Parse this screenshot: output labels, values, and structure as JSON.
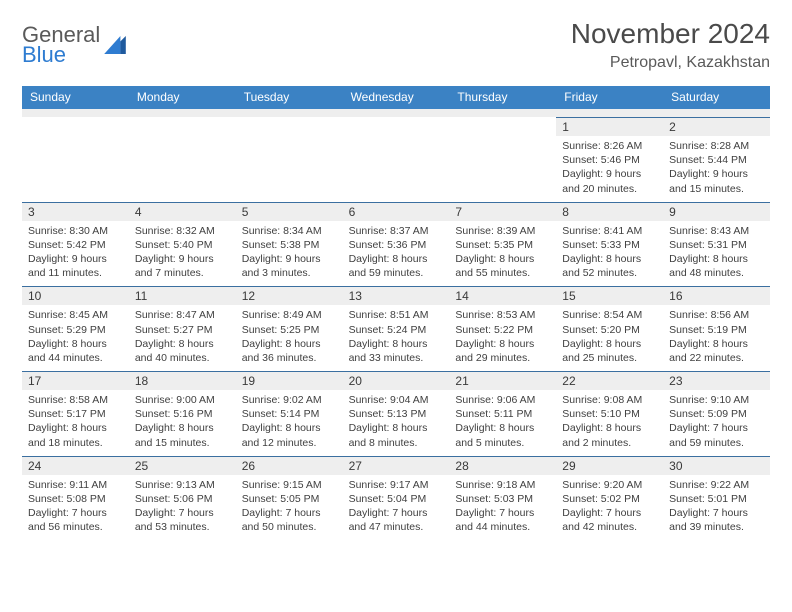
{
  "logo": {
    "text1": "General",
    "text2": "Blue"
  },
  "header": {
    "title": "November 2024",
    "location": "Petropavl, Kazakhstan"
  },
  "colors": {
    "header_bg": "#3b82c4",
    "header_text": "#ffffff",
    "daynum_bg": "#eeeeee",
    "cell_border_top": "#3b6fa0",
    "text": "#404040",
    "logo_blue": "#2e7cd1",
    "logo_gray": "#5a5a5a"
  },
  "daynames": [
    "Sunday",
    "Monday",
    "Tuesday",
    "Wednesday",
    "Thursday",
    "Friday",
    "Saturday"
  ],
  "weeks": [
    [
      null,
      null,
      null,
      null,
      null,
      {
        "n": "1",
        "sr": "Sunrise: 8:26 AM",
        "ss": "Sunset: 5:46 PM",
        "d1": "Daylight: 9 hours",
        "d2": "and 20 minutes."
      },
      {
        "n": "2",
        "sr": "Sunrise: 8:28 AM",
        "ss": "Sunset: 5:44 PM",
        "d1": "Daylight: 9 hours",
        "d2": "and 15 minutes."
      }
    ],
    [
      {
        "n": "3",
        "sr": "Sunrise: 8:30 AM",
        "ss": "Sunset: 5:42 PM",
        "d1": "Daylight: 9 hours",
        "d2": "and 11 minutes."
      },
      {
        "n": "4",
        "sr": "Sunrise: 8:32 AM",
        "ss": "Sunset: 5:40 PM",
        "d1": "Daylight: 9 hours",
        "d2": "and 7 minutes."
      },
      {
        "n": "5",
        "sr": "Sunrise: 8:34 AM",
        "ss": "Sunset: 5:38 PM",
        "d1": "Daylight: 9 hours",
        "d2": "and 3 minutes."
      },
      {
        "n": "6",
        "sr": "Sunrise: 8:37 AM",
        "ss": "Sunset: 5:36 PM",
        "d1": "Daylight: 8 hours",
        "d2": "and 59 minutes."
      },
      {
        "n": "7",
        "sr": "Sunrise: 8:39 AM",
        "ss": "Sunset: 5:35 PM",
        "d1": "Daylight: 8 hours",
        "d2": "and 55 minutes."
      },
      {
        "n": "8",
        "sr": "Sunrise: 8:41 AM",
        "ss": "Sunset: 5:33 PM",
        "d1": "Daylight: 8 hours",
        "d2": "and 52 minutes."
      },
      {
        "n": "9",
        "sr": "Sunrise: 8:43 AM",
        "ss": "Sunset: 5:31 PM",
        "d1": "Daylight: 8 hours",
        "d2": "and 48 minutes."
      }
    ],
    [
      {
        "n": "10",
        "sr": "Sunrise: 8:45 AM",
        "ss": "Sunset: 5:29 PM",
        "d1": "Daylight: 8 hours",
        "d2": "and 44 minutes."
      },
      {
        "n": "11",
        "sr": "Sunrise: 8:47 AM",
        "ss": "Sunset: 5:27 PM",
        "d1": "Daylight: 8 hours",
        "d2": "and 40 minutes."
      },
      {
        "n": "12",
        "sr": "Sunrise: 8:49 AM",
        "ss": "Sunset: 5:25 PM",
        "d1": "Daylight: 8 hours",
        "d2": "and 36 minutes."
      },
      {
        "n": "13",
        "sr": "Sunrise: 8:51 AM",
        "ss": "Sunset: 5:24 PM",
        "d1": "Daylight: 8 hours",
        "d2": "and 33 minutes."
      },
      {
        "n": "14",
        "sr": "Sunrise: 8:53 AM",
        "ss": "Sunset: 5:22 PM",
        "d1": "Daylight: 8 hours",
        "d2": "and 29 minutes."
      },
      {
        "n": "15",
        "sr": "Sunrise: 8:54 AM",
        "ss": "Sunset: 5:20 PM",
        "d1": "Daylight: 8 hours",
        "d2": "and 25 minutes."
      },
      {
        "n": "16",
        "sr": "Sunrise: 8:56 AM",
        "ss": "Sunset: 5:19 PM",
        "d1": "Daylight: 8 hours",
        "d2": "and 22 minutes."
      }
    ],
    [
      {
        "n": "17",
        "sr": "Sunrise: 8:58 AM",
        "ss": "Sunset: 5:17 PM",
        "d1": "Daylight: 8 hours",
        "d2": "and 18 minutes."
      },
      {
        "n": "18",
        "sr": "Sunrise: 9:00 AM",
        "ss": "Sunset: 5:16 PM",
        "d1": "Daylight: 8 hours",
        "d2": "and 15 minutes."
      },
      {
        "n": "19",
        "sr": "Sunrise: 9:02 AM",
        "ss": "Sunset: 5:14 PM",
        "d1": "Daylight: 8 hours",
        "d2": "and 12 minutes."
      },
      {
        "n": "20",
        "sr": "Sunrise: 9:04 AM",
        "ss": "Sunset: 5:13 PM",
        "d1": "Daylight: 8 hours",
        "d2": "and 8 minutes."
      },
      {
        "n": "21",
        "sr": "Sunrise: 9:06 AM",
        "ss": "Sunset: 5:11 PM",
        "d1": "Daylight: 8 hours",
        "d2": "and 5 minutes."
      },
      {
        "n": "22",
        "sr": "Sunrise: 9:08 AM",
        "ss": "Sunset: 5:10 PM",
        "d1": "Daylight: 8 hours",
        "d2": "and 2 minutes."
      },
      {
        "n": "23",
        "sr": "Sunrise: 9:10 AM",
        "ss": "Sunset: 5:09 PM",
        "d1": "Daylight: 7 hours",
        "d2": "and 59 minutes."
      }
    ],
    [
      {
        "n": "24",
        "sr": "Sunrise: 9:11 AM",
        "ss": "Sunset: 5:08 PM",
        "d1": "Daylight: 7 hours",
        "d2": "and 56 minutes."
      },
      {
        "n": "25",
        "sr": "Sunrise: 9:13 AM",
        "ss": "Sunset: 5:06 PM",
        "d1": "Daylight: 7 hours",
        "d2": "and 53 minutes."
      },
      {
        "n": "26",
        "sr": "Sunrise: 9:15 AM",
        "ss": "Sunset: 5:05 PM",
        "d1": "Daylight: 7 hours",
        "d2": "and 50 minutes."
      },
      {
        "n": "27",
        "sr": "Sunrise: 9:17 AM",
        "ss": "Sunset: 5:04 PM",
        "d1": "Daylight: 7 hours",
        "d2": "and 47 minutes."
      },
      {
        "n": "28",
        "sr": "Sunrise: 9:18 AM",
        "ss": "Sunset: 5:03 PM",
        "d1": "Daylight: 7 hours",
        "d2": "and 44 minutes."
      },
      {
        "n": "29",
        "sr": "Sunrise: 9:20 AM",
        "ss": "Sunset: 5:02 PM",
        "d1": "Daylight: 7 hours",
        "d2": "and 42 minutes."
      },
      {
        "n": "30",
        "sr": "Sunrise: 9:22 AM",
        "ss": "Sunset: 5:01 PM",
        "d1": "Daylight: 7 hours",
        "d2": "and 39 minutes."
      }
    ]
  ]
}
